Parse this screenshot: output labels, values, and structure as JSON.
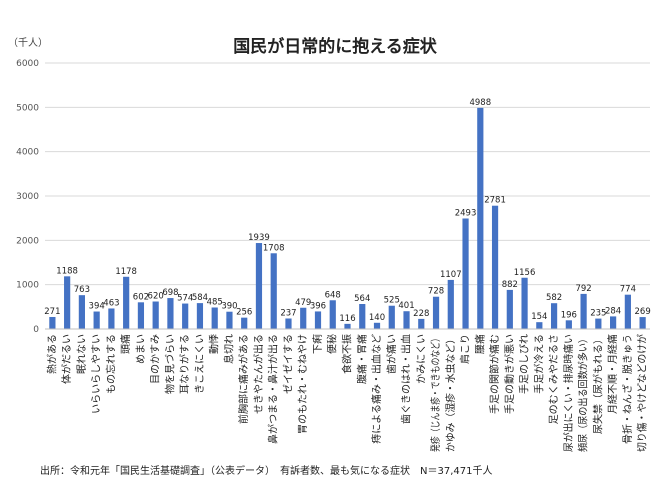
{
  "chart_data": {
    "type": "bar",
    "title": "国民が日常的に抱える症状",
    "ylabel": "（千人）",
    "ylim": [
      0,
      6000
    ],
    "yticks": [
      0,
      1000,
      2000,
      3000,
      4000,
      5000,
      6000
    ],
    "grid": true,
    "legend": "none",
    "bar_color": "#4472C4",
    "categories": [
      "熱がある",
      "体がだるい",
      "眠れない",
      "いらいらしやすい",
      "もの忘れする",
      "頭痛",
      "めまい",
      "目のかすみ",
      "物を見づらい",
      "耳なりがする",
      "きこえにくい",
      "動悸",
      "息切れ",
      "前胸部に痛みがある",
      "せきやたんが出る",
      "鼻がつまる・鼻汁が出る",
      "ゼイゼイする",
      "胃のもたれ・むねやけ",
      "下痢",
      "便秘",
      "食欲不振",
      "腹痛・胃痛",
      "痔による痛み・出血など",
      "歯が痛い",
      "歯ぐきのはれ・出血",
      "かみにくい",
      "発疹（じんま疹・できものなど）",
      "かゆみ（湿疹・水虫など）",
      "肩こり",
      "腰痛",
      "手足の関節が痛む",
      "手足の動きが悪い",
      "手足のしびれ",
      "手足が冷える",
      "足のむくみやだるさ",
      "尿が出にくい・排尿時痛い",
      "頻尿（尿の出る回数が多い）",
      "尿失禁（尿がもれる）",
      "月経不順・月経痛",
      "骨折・ねんざ・脱きゅう",
      "切り傷・やけどなどのけが"
    ],
    "values": [
      271,
      1188,
      763,
      394,
      463,
      1178,
      602,
      620,
      698,
      574,
      584,
      485,
      390,
      256,
      1939,
      1708,
      237,
      479,
      396,
      648,
      116,
      564,
      140,
      525,
      401,
      228,
      728,
      1107,
      2493,
      4988,
      2781,
      882,
      1156,
      154,
      582,
      196,
      792,
      235,
      284,
      774,
      269
    ],
    "value_labels": [
      "271",
      "1188",
      "763",
      "394",
      "463",
      "1178",
      "602",
      "620",
      "698",
      "574",
      "584",
      "485",
      "390",
      "256",
      "1939",
      "1708",
      "237",
      "479",
      "396",
      "648",
      "116",
      "564",
      "140",
      "525",
      "401",
      "228",
      "728",
      "1107",
      "2493",
      "4988",
      "2781",
      "882",
      "1156",
      "154",
      "582",
      "196",
      "792",
      "235",
      "284",
      "774",
      "269"
    ]
  },
  "source_note": "出所：令和元年「国民生活基礎調査」（公表データ）　有訴者数、最も気になる症状　N＝37,471千人"
}
